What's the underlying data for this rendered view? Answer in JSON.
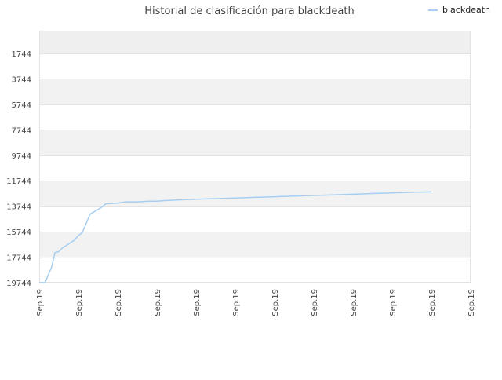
{
  "chart_data": {
    "type": "line",
    "title": "Historial de clasificación para blackdeath",
    "legend": {
      "position": "top-right"
    },
    "series": [
      {
        "name": "blackdeath",
        "color": "#a7cdf0",
        "x": [
          0.0,
          0.15,
          0.25,
          0.32,
          0.4,
          0.5,
          0.6,
          0.8,
          0.9,
          1.0,
          1.1,
          1.3,
          1.5,
          1.6,
          1.7,
          2.0,
          2.2,
          2.5,
          2.8,
          3.0,
          3.2,
          3.5,
          4.0,
          4.5,
          5.0,
          5.5,
          6.0,
          6.5,
          7.0,
          7.5,
          8.0,
          8.5,
          9.0,
          9.5,
          10.0
        ],
        "y": [
          19744,
          19744,
          19000,
          18500,
          17400,
          17300,
          17000,
          16600,
          16400,
          16050,
          15800,
          14350,
          14000,
          13800,
          13550,
          13500,
          13400,
          13400,
          13350,
          13350,
          13300,
          13250,
          13200,
          13150,
          13100,
          13050,
          13000,
          12950,
          12900,
          12850,
          12800,
          12750,
          12700,
          12650,
          12620
        ]
      }
    ],
    "x_ticks": [
      "Sep.19",
      "Sep.19",
      "Sep.19",
      "Sep.19",
      "Sep.19",
      "Sep.19",
      "Sep.19",
      "Sep.19",
      "Sep.19",
      "Sep.19",
      "Sep.19",
      "Sep.19"
    ],
    "y_ticks": [
      1744,
      3744,
      5744,
      7744,
      9744,
      11744,
      13744,
      15744,
      17744,
      19744
    ],
    "y_range": [
      19744,
      0
    ],
    "y_inverted": true,
    "grid": true,
    "band_colors": [
      "#f2f2f2",
      "#ffffff"
    ],
    "top_band_color": "#efefef",
    "grid_color": "#e3e3e3"
  }
}
